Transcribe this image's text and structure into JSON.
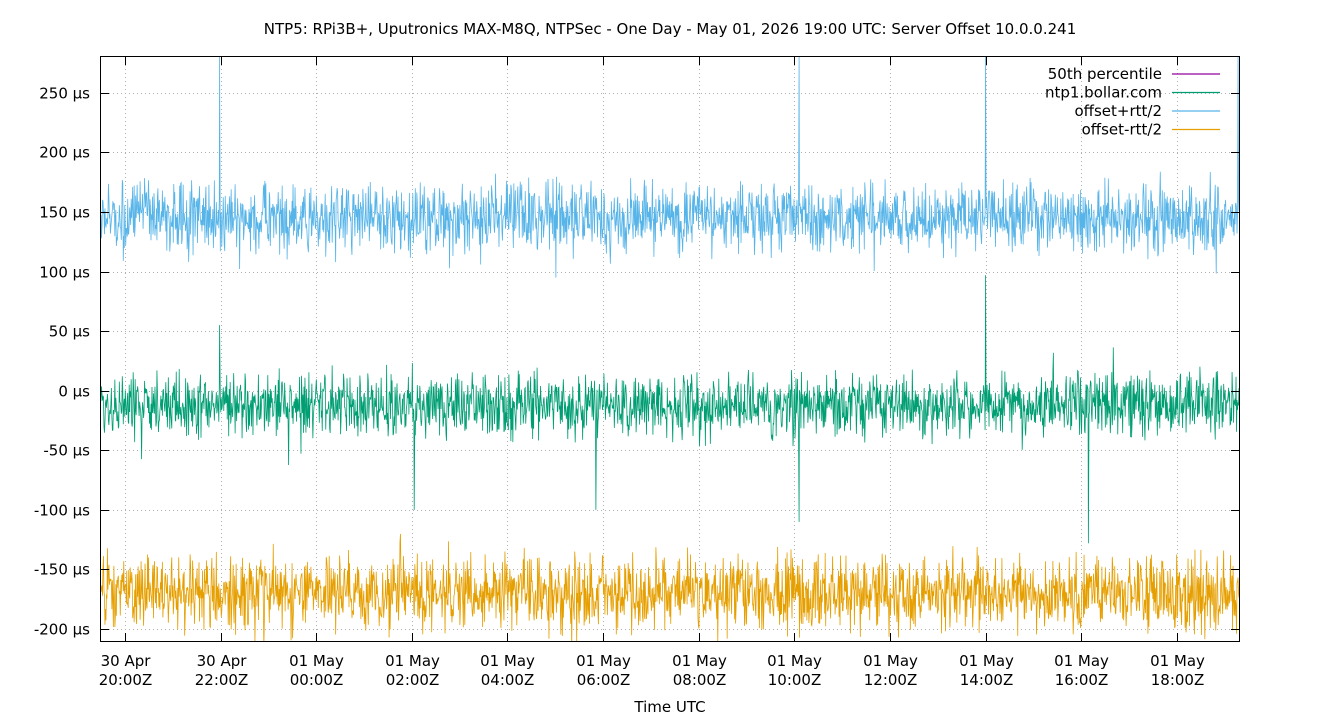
{
  "chart_data": {
    "type": "line",
    "title": "NTP5: RPi3B+, Uputronics MAX-M8Q, NTPSec - One Day - May 01, 2026 19:00 UTC: Server Offset 10.0.0.241",
    "xlabel": "Time UTC",
    "ylabel": "",
    "x_range_hours": [
      -0.5,
      23.3
    ],
    "ylim": [
      -210,
      280
    ],
    "grid": true,
    "legend_position": "top-right",
    "y_ticks": [
      {
        "value": 250,
        "label": "250 µs"
      },
      {
        "value": 200,
        "label": "200 µs"
      },
      {
        "value": 150,
        "label": "150 µs"
      },
      {
        "value": 100,
        "label": "100 µs"
      },
      {
        "value": 50,
        "label": "50 µs"
      },
      {
        "value": 0,
        "label": "0 µs"
      },
      {
        "value": -50,
        "label": "-50 µs"
      },
      {
        "value": -100,
        "label": "-100 µs"
      },
      {
        "value": -150,
        "label": "-150 µs"
      },
      {
        "value": -200,
        "label": "-200 µs"
      }
    ],
    "x_ticks": [
      {
        "hour": 0,
        "date": "30 Apr",
        "time": "20:00Z"
      },
      {
        "hour": 2,
        "date": "30 Apr",
        "time": "22:00Z"
      },
      {
        "hour": 4,
        "date": "01 May",
        "time": "00:00Z"
      },
      {
        "hour": 6,
        "date": "01 May",
        "time": "02:00Z"
      },
      {
        "hour": 8,
        "date": "01 May",
        "time": "04:00Z"
      },
      {
        "hour": 10,
        "date": "01 May",
        "time": "06:00Z"
      },
      {
        "hour": 12,
        "date": "01 May",
        "time": "08:00Z"
      },
      {
        "hour": 14,
        "date": "01 May",
        "time": "10:00Z"
      },
      {
        "hour": 16,
        "date": "01 May",
        "time": "12:00Z"
      },
      {
        "hour": 18,
        "date": "01 May",
        "time": "14:00Z"
      },
      {
        "hour": 20,
        "date": "01 May",
        "time": "16:00Z"
      },
      {
        "hour": 22,
        "date": "01 May",
        "time": "18:00Z"
      }
    ],
    "series": [
      {
        "name": "50th percentile",
        "color": "#94009e",
        "values": [
          -12
        ]
      },
      {
        "name": "ntp1.bollar.com",
        "color": "#009e73",
        "center": -12,
        "noise_amplitude": 38,
        "spikes": [
          {
            "hour": 1.98,
            "value": 55
          },
          {
            "hour": 6.05,
            "value": -100
          },
          {
            "hour": 9.85,
            "value": -100
          },
          {
            "hour": 14.1,
            "value": -110
          },
          {
            "hour": 18.0,
            "value": 97
          },
          {
            "hour": 20.15,
            "value": -128
          }
        ]
      },
      {
        "name": "offset+rtt/2",
        "color": "#56b4e9",
        "center": 145,
        "noise_amplitude": 42,
        "spikes": [
          {
            "hour": 1.98,
            "value": 280
          },
          {
            "hour": 14.1,
            "value": 280
          },
          {
            "hour": 18.0,
            "value": 280
          },
          {
            "hour": 23.28,
            "value": 280
          }
        ]
      },
      {
        "name": "offset-rtt/2",
        "color": "#e69f00",
        "center": -170,
        "noise_amplitude": 45,
        "spikes": []
      }
    ]
  }
}
